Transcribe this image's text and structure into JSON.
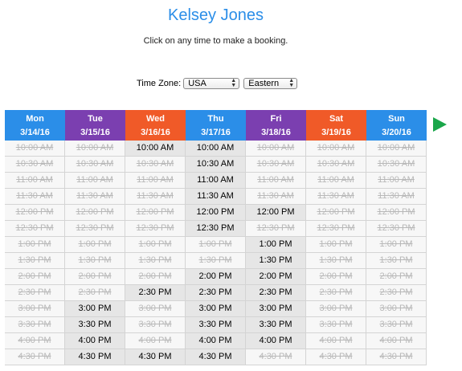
{
  "header": {
    "title": "Kelsey Jones",
    "instructions": "Click on any time to make a booking."
  },
  "timezone": {
    "label": "Time Zone:",
    "country": "USA",
    "zone": "Eastern"
  },
  "colors": {
    "title": "#2b8ee8",
    "blue": "#2b8ee8",
    "purple": "#7b3fb0",
    "orange": "#f05a28",
    "next_arrow": "#1aa64a"
  },
  "days": [
    {
      "name": "Mon",
      "date": "3/14/16",
      "color": "#2b8ee8"
    },
    {
      "name": "Tue",
      "date": "3/15/16",
      "color": "#7b3fb0"
    },
    {
      "name": "Wed",
      "date": "3/16/16",
      "color": "#f05a28"
    },
    {
      "name": "Thu",
      "date": "3/17/16",
      "color": "#2b8ee8"
    },
    {
      "name": "Fri",
      "date": "3/18/16",
      "color": "#7b3fb0"
    },
    {
      "name": "Sat",
      "date": "3/19/16",
      "color": "#f05a28"
    },
    {
      "name": "Sun",
      "date": "3/20/16",
      "color": "#2b8ee8"
    }
  ],
  "times": [
    "10:00 AM",
    "10:30 AM",
    "11:00 AM",
    "11:30 AM",
    "12:00 PM",
    "12:30 PM",
    "1:00 PM",
    "1:30 PM",
    "2:00 PM",
    "2:30 PM",
    "3:00 PM",
    "3:30 PM",
    "4:00 PM",
    "4:30 PM"
  ],
  "availability": [
    [
      false,
      false,
      true,
      true,
      false,
      false,
      false
    ],
    [
      false,
      false,
      false,
      true,
      false,
      false,
      false
    ],
    [
      false,
      false,
      false,
      true,
      false,
      false,
      false
    ],
    [
      false,
      false,
      false,
      true,
      false,
      false,
      false
    ],
    [
      false,
      false,
      false,
      true,
      true,
      false,
      false
    ],
    [
      false,
      false,
      false,
      true,
      false,
      false,
      false
    ],
    [
      false,
      false,
      false,
      false,
      true,
      false,
      false
    ],
    [
      false,
      false,
      false,
      false,
      true,
      false,
      false
    ],
    [
      false,
      false,
      false,
      true,
      true,
      false,
      false
    ],
    [
      false,
      false,
      true,
      true,
      true,
      false,
      false
    ],
    [
      false,
      true,
      false,
      true,
      true,
      false,
      false
    ],
    [
      false,
      true,
      false,
      true,
      true,
      false,
      false
    ],
    [
      false,
      true,
      false,
      true,
      true,
      false,
      false
    ],
    [
      false,
      true,
      true,
      true,
      false,
      false,
      false
    ]
  ]
}
